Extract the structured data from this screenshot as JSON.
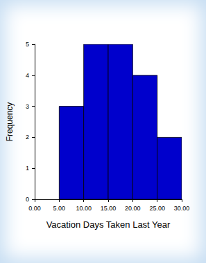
{
  "chart_data": {
    "type": "histogram",
    "bins": [
      5,
      10,
      15,
      20,
      25,
      30
    ],
    "values": [
      3,
      5,
      5,
      4,
      2
    ],
    "color": "#0000cc",
    "xlabel": "Vacation Days Taken Last Year",
    "ylabel": "Frequency",
    "xlim": [
      0,
      30
    ],
    "xticks": [
      {
        "value": 0,
        "label": "0.00"
      },
      {
        "value": 5,
        "label": "5.00"
      },
      {
        "value": 10,
        "label": "10.00"
      },
      {
        "value": 15,
        "label": "15.00"
      },
      {
        "value": 20,
        "label": "20.00"
      },
      {
        "value": 25,
        "label": "25.00"
      },
      {
        "value": 30,
        "label": "30.00"
      }
    ],
    "ylim": [
      0,
      5
    ],
    "yticks": [
      0,
      1,
      2,
      3,
      4,
      5
    ],
    "grid": false
  }
}
